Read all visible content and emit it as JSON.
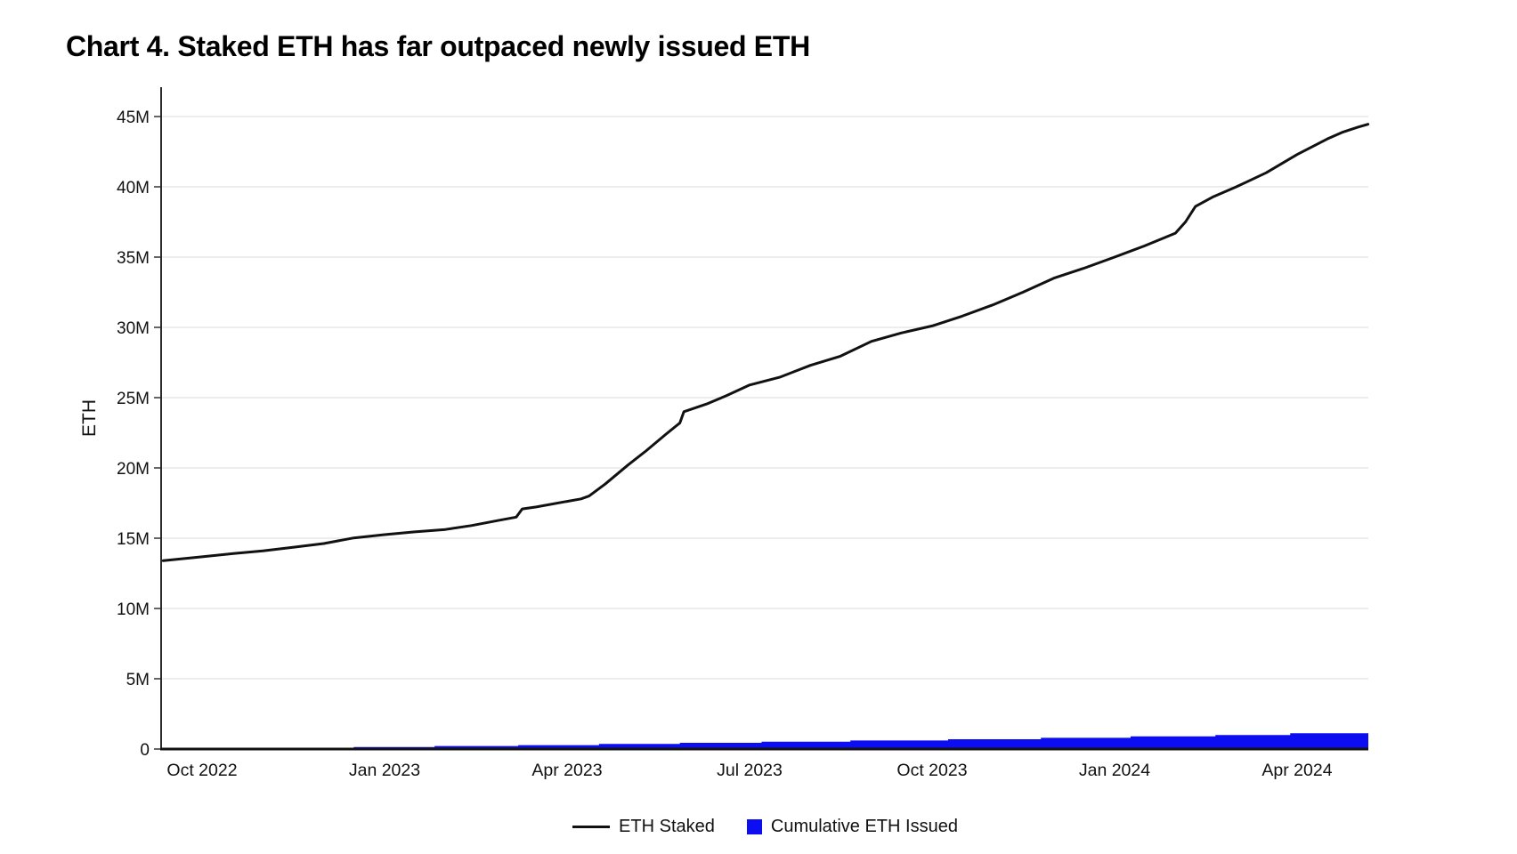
{
  "chart_data": {
    "type": "line",
    "title": "Chart 4. Staked ETH has far outpaced newly issued ETH",
    "xlabel": "",
    "ylabel": "ETH",
    "y_unit": "millions of ETH",
    "ylim_millions": [
      0,
      45
    ],
    "grid": "horizontal",
    "legend_position": "bottom-center",
    "y_ticks": [
      {
        "value_millions": 0,
        "label": "0"
      },
      {
        "value_millions": 5,
        "label": "5M"
      },
      {
        "value_millions": 10,
        "label": "10M"
      },
      {
        "value_millions": 15,
        "label": "15M"
      },
      {
        "value_millions": 20,
        "label": "20M"
      },
      {
        "value_millions": 25,
        "label": "25M"
      },
      {
        "value_millions": 30,
        "label": "30M"
      },
      {
        "value_millions": 35,
        "label": "35M"
      },
      {
        "value_millions": 40,
        "label": "40M"
      },
      {
        "value_millions": 45,
        "label": "45M"
      }
    ],
    "x_ticks": [
      {
        "date": "2022-10-01",
        "label": "Oct 2022"
      },
      {
        "date": "2023-01-01",
        "label": "Jan 2023"
      },
      {
        "date": "2023-04-01",
        "label": "Apr 2023"
      },
      {
        "date": "2023-07-01",
        "label": "Jul 2023"
      },
      {
        "date": "2023-10-01",
        "label": "Oct 2023"
      },
      {
        "date": "2024-01-01",
        "label": "Jan 2024"
      },
      {
        "date": "2024-04-01",
        "label": "Apr 2024"
      }
    ],
    "x_domain": [
      "2022-09-12",
      "2024-05-06"
    ],
    "series": [
      {
        "name": "ETH Staked",
        "style": "line",
        "color": "#111111",
        "points_date_valueMillions": [
          [
            "2022-09-12",
            13.4
          ],
          [
            "2022-10-01",
            13.68
          ],
          [
            "2022-10-16",
            13.9
          ],
          [
            "2022-11-01",
            14.1
          ],
          [
            "2022-11-16",
            14.35
          ],
          [
            "2022-12-01",
            14.62
          ],
          [
            "2022-12-16",
            15.02
          ],
          [
            "2023-01-01",
            15.25
          ],
          [
            "2023-01-16",
            15.45
          ],
          [
            "2023-02-01",
            15.62
          ],
          [
            "2023-02-14",
            15.9
          ],
          [
            "2023-02-28",
            16.28
          ],
          [
            "2023-03-06",
            16.5
          ],
          [
            "2023-03-09",
            17.08
          ],
          [
            "2023-03-16",
            17.22
          ],
          [
            "2023-04-01",
            17.62
          ],
          [
            "2023-04-08",
            17.8
          ],
          [
            "2023-04-12",
            18.0
          ],
          [
            "2023-04-20",
            18.85
          ],
          [
            "2023-05-01",
            20.2
          ],
          [
            "2023-05-10",
            21.2
          ],
          [
            "2023-05-20",
            22.4
          ],
          [
            "2023-05-27",
            23.2
          ],
          [
            "2023-05-29",
            24.0
          ],
          [
            "2023-06-10",
            24.55
          ],
          [
            "2023-06-20",
            25.15
          ],
          [
            "2023-07-01",
            25.9
          ],
          [
            "2023-07-16",
            26.45
          ],
          [
            "2023-08-01",
            27.3
          ],
          [
            "2023-08-16",
            27.95
          ],
          [
            "2023-09-01",
            29.0
          ],
          [
            "2023-09-16",
            29.6
          ],
          [
            "2023-10-01",
            30.1
          ],
          [
            "2023-10-16",
            30.8
          ],
          [
            "2023-11-01",
            31.6
          ],
          [
            "2023-11-16",
            32.5
          ],
          [
            "2023-12-01",
            33.5
          ],
          [
            "2023-12-16",
            34.2
          ],
          [
            "2024-01-01",
            35.0
          ],
          [
            "2024-01-16",
            35.8
          ],
          [
            "2024-02-01",
            36.7
          ],
          [
            "2024-02-06",
            37.5
          ],
          [
            "2024-02-11",
            38.6
          ],
          [
            "2024-02-20",
            39.3
          ],
          [
            "2024-03-01",
            40.0
          ],
          [
            "2024-03-16",
            41.0
          ],
          [
            "2024-04-01",
            42.3
          ],
          [
            "2024-04-16",
            43.4
          ],
          [
            "2024-04-24",
            43.9
          ],
          [
            "2024-05-01",
            44.25
          ],
          [
            "2024-05-06",
            44.45
          ]
        ]
      },
      {
        "name": "Cumulative ETH Issued",
        "style": "step-area",
        "color": "#0d0df2",
        "points_date_valueMillions": [
          [
            "2022-09-12",
            0.02
          ],
          [
            "2022-11-02",
            0.07
          ],
          [
            "2022-12-16",
            0.14
          ],
          [
            "2023-01-26",
            0.21
          ],
          [
            "2023-03-07",
            0.28
          ],
          [
            "2023-04-17",
            0.36
          ],
          [
            "2023-05-27",
            0.44
          ],
          [
            "2023-07-07",
            0.52
          ],
          [
            "2023-08-21",
            0.61
          ],
          [
            "2023-10-09",
            0.7
          ],
          [
            "2023-11-25",
            0.8
          ],
          [
            "2024-01-09",
            0.9
          ],
          [
            "2024-02-21",
            1.0
          ],
          [
            "2024-03-28",
            1.12
          ],
          [
            "2024-05-06",
            1.12
          ]
        ]
      }
    ]
  },
  "legend": {
    "items": [
      {
        "label": "ETH Staked",
        "swatch": "line",
        "color": "#111111"
      },
      {
        "label": "Cumulative ETH Issued",
        "swatch": "square",
        "color": "#0d0df2"
      }
    ]
  }
}
